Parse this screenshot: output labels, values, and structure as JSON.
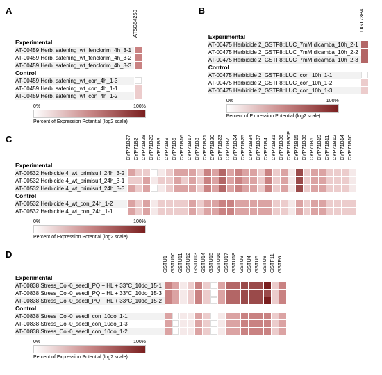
{
  "colors": {
    "scale": [
      "#ffffff",
      "#f5e9e9",
      "#eccccc",
      "#dba3a3",
      "#c98282",
      "#b36666",
      "#9a4a4a",
      "#7a1f1f"
    ],
    "row_bg": "#f2f2f2",
    "row_alt_bg": "#ffffff"
  },
  "legend": {
    "min_label": "0%",
    "max_label": "100%",
    "caption": "Percent of Expression Potential (log2 scale)"
  },
  "panels": {
    "A": {
      "letter": "A",
      "col_header_height": 48,
      "columns": [
        "AT5G64250"
      ],
      "experimental_label": "Experimental",
      "control_label": "Control",
      "experimental": [
        {
          "id": "AT-00459",
          "label": "Herb. safening_wt_fenclorim_4h_3-1",
          "vals": [
            4
          ]
        },
        {
          "id": "AT-00459",
          "label": "Herb. safening_wt_fenclorim_4h_3-2",
          "vals": [
            4
          ]
        },
        {
          "id": "AT-00459",
          "label": "Herb. safening_wt_fenclorim_4h_3-3",
          "vals": [
            4
          ]
        }
      ],
      "control": [
        {
          "id": "AT-00459",
          "label": "Herb. safening_wt_con_4h_1-3",
          "vals": [
            0
          ]
        },
        {
          "id": "AT-00459",
          "label": "Herb. safening_wt_con_4h_1-1",
          "vals": [
            2
          ]
        },
        {
          "id": "AT-00459",
          "label": "Herb. safening_wt_con_4h_1-2",
          "vals": [
            2
          ]
        }
      ]
    },
    "B": {
      "letter": "B",
      "col_header_height": 40,
      "columns": [
        "UGT73B4"
      ],
      "experimental_label": "Experimental",
      "control_label": "Control",
      "experimental": [
        {
          "id": "AT-00475",
          "label": "Herbicide 2_GSTF8::LUC_7mM dicamba_10h_2-1",
          "vals": [
            5
          ]
        },
        {
          "id": "AT-00475",
          "label": "Herbicide 2_GSTF8::LUC_7mM dicamba_10h_2-2",
          "vals": [
            5
          ]
        },
        {
          "id": "AT-00475",
          "label": "Herbicide 2_GSTF8::LUC_7mM dicamba_10h_2-3",
          "vals": [
            5
          ]
        }
      ],
      "control": [
        {
          "id": "AT-00475",
          "label": "Herbicide 2_GSTF8::LUC_con_10h_1-1",
          "vals": [
            0
          ]
        },
        {
          "id": "AT-00475",
          "label": "Herbicide 2_GSTF8::LUC_con_10h_1-2",
          "vals": [
            2
          ]
        },
        {
          "id": "AT-00475",
          "label": "Herbicide 2_GSTF8::LUC_con_10h_1-3",
          "vals": [
            2
          ]
        }
      ]
    },
    "C": {
      "letter": "C",
      "col_header_height": 40,
      "columns": [
        "CYP71B27",
        "CYP71B2",
        "CYP71B28",
        "CYP71B29",
        "CYP71B3",
        "CYP71B9",
        "CYP71B6",
        "CYP71B16",
        "CYP71B17",
        "CYP71B8",
        "CYP71B21",
        "CYP71B20",
        "CYP71B23",
        "CYP71B7",
        "CYP71B24",
        "CYP71B25",
        "CYP71B34",
        "CYP71B37",
        "CYP71B4",
        "CYP71B31",
        "CYP71B36",
        "CYP71B30P",
        "CYP71B15",
        "CYP71B38",
        "CYP71B5",
        "CYP71B19",
        "CYP71B11",
        "CYP71B12",
        "CYP71B14",
        "CYP71B10"
      ],
      "experimental_label": "Experimental",
      "control_label": "Control",
      "experimental": [
        {
          "id": "AT-00532",
          "label": "Herbicide 4_wt_primisulf_24h_3-2",
          "vals": [
            3,
            2,
            2,
            0,
            1,
            2,
            3,
            3,
            3,
            2,
            4,
            3,
            5,
            3,
            4,
            3,
            3,
            2,
            4,
            2,
            3,
            1,
            6,
            2,
            3,
            3,
            2,
            2,
            2,
            1
          ]
        },
        {
          "id": "AT-00532",
          "label": "Herbicide 4_wt_primisulf_24h_3-1",
          "vals": [
            2,
            2,
            3,
            1,
            2,
            2,
            3,
            2,
            3,
            2,
            4,
            3,
            5,
            3,
            4,
            3,
            3,
            2,
            4,
            2,
            3,
            1,
            6,
            2,
            3,
            3,
            2,
            2,
            2,
            1
          ]
        },
        {
          "id": "AT-00532",
          "label": "Herbicide 4_wt_primisulf_24h_3-3",
          "vals": [
            3,
            2,
            3,
            0,
            1,
            2,
            3,
            3,
            3,
            2,
            4,
            3,
            5,
            3,
            4,
            3,
            3,
            2,
            4,
            2,
            3,
            1,
            6,
            2,
            3,
            3,
            2,
            2,
            2,
            1
          ]
        }
      ],
      "control": [
        {
          "id": "AT-00532",
          "label": "Herbicide 4_wt_con_24h_1-2",
          "vals": [
            3,
            2,
            3,
            1,
            2,
            2,
            2,
            2,
            3,
            2,
            3,
            3,
            4,
            4,
            3,
            3,
            3,
            3,
            3,
            2,
            2,
            1,
            3,
            2,
            3,
            3,
            2,
            2,
            2,
            2
          ]
        },
        {
          "id": "AT-00532",
          "label": "Herbicide 4_wt_con_24h_1-1",
          "vals": [
            3,
            2,
            3,
            1,
            2,
            2,
            2,
            2,
            3,
            2,
            3,
            3,
            4,
            4,
            3,
            3,
            3,
            3,
            3,
            2,
            2,
            1,
            3,
            2,
            3,
            3,
            2,
            2,
            2,
            2
          ]
        }
      ]
    },
    "D": {
      "letter": "D",
      "col_header_height": 36,
      "columns": [
        "GSTU1",
        "GSTU10",
        "GSTU11",
        "GSTU12",
        "GSTU13",
        "GSTU14",
        "GSTU15",
        "GSTU16",
        "GSTU17",
        "GSTU18",
        "GSTU3",
        "GSTU4",
        "GSTU5",
        "GSTU8",
        "GSTF11",
        "GSTF6"
      ],
      "experimental_label": "Experimental",
      "control_label": "Control",
      "experimental": [
        {
          "id": "AT-00838",
          "label": "Stress_Col-0_seedl_PQ + HL + 33°C_10do_15-1",
          "vals": [
            4,
            3,
            1,
            2,
            4,
            2,
            0,
            3,
            5,
            5,
            6,
            6,
            6,
            7,
            2,
            4
          ]
        },
        {
          "id": "AT-00838",
          "label": "Stress_Col-0_seedl_PQ + HL + 33°C_10do_15-3",
          "vals": [
            4,
            3,
            1,
            2,
            4,
            2,
            0,
            3,
            5,
            5,
            6,
            6,
            6,
            6,
            2,
            4
          ]
        },
        {
          "id": "AT-00838",
          "label": "Stress_Col-0_seedl_PQ + HL + 33°C_10do_15-2",
          "vals": [
            4,
            3,
            1,
            2,
            4,
            2,
            0,
            3,
            5,
            5,
            6,
            6,
            6,
            7,
            2,
            4
          ]
        }
      ],
      "control": [
        {
          "id": "AT-00838",
          "label": "Stress_Col-0_seedl_con_10do_1-1",
          "vals": [
            3,
            0,
            1,
            1,
            3,
            2,
            0,
            1,
            3,
            3,
            4,
            4,
            4,
            4,
            2,
            3
          ]
        },
        {
          "id": "AT-00838",
          "label": "Stress_Col-0_seedl_con_10do_1-3",
          "vals": [
            3,
            0,
            1,
            1,
            3,
            2,
            0,
            1,
            3,
            3,
            4,
            4,
            4,
            4,
            2,
            3
          ]
        },
        {
          "id": "AT-00838",
          "label": "Stress_Col-0_seedl_con_10do_1-2",
          "vals": [
            3,
            0,
            1,
            1,
            3,
            2,
            0,
            1,
            3,
            3,
            4,
            4,
            4,
            4,
            2,
            3
          ]
        }
      ]
    }
  }
}
